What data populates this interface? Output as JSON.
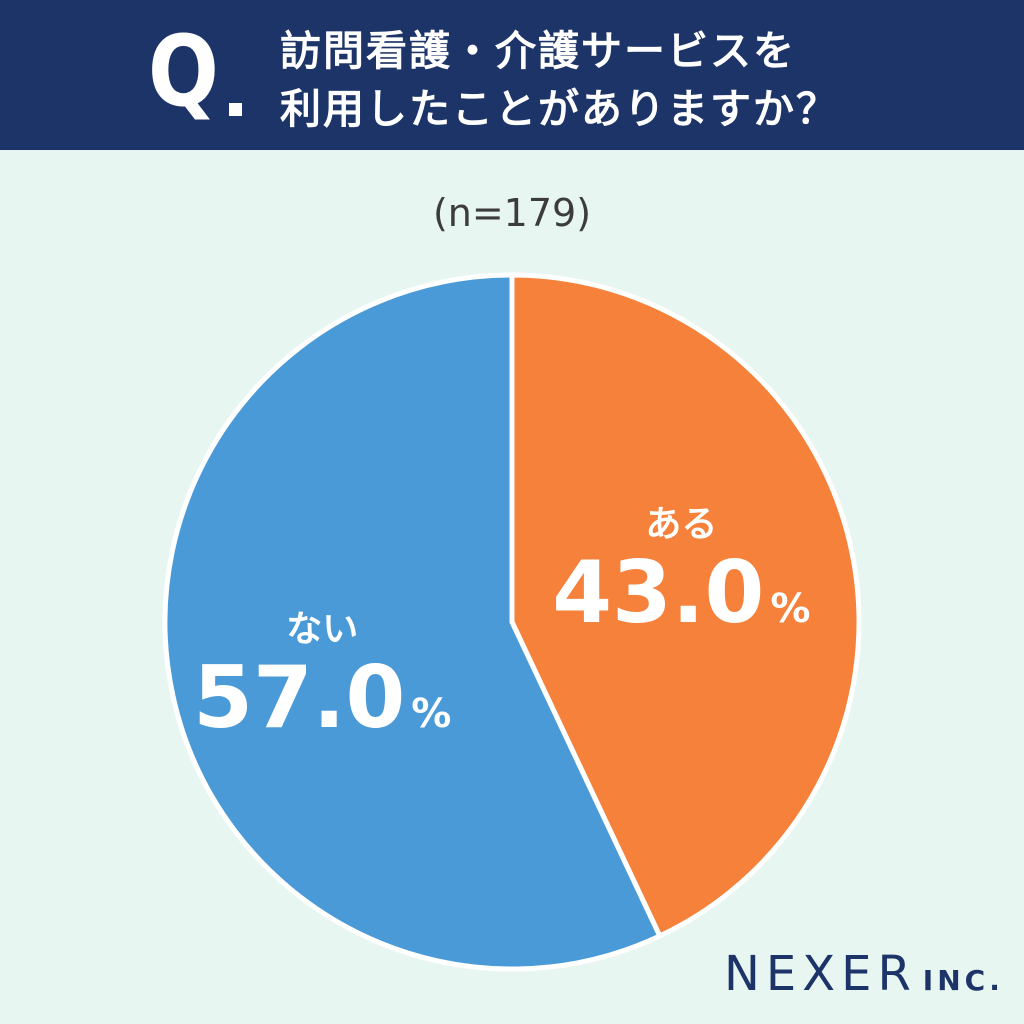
{
  "header": {
    "q_mark": "Q",
    "question_line1": "訪問看護・介護サービスを",
    "question_line2": "利用したことがありますか？"
  },
  "sample_size": "(n=179)",
  "chart_data": {
    "type": "pie",
    "title": "訪問看護・介護サービスを利用したことがありますか？",
    "n": 179,
    "unit": "%",
    "slices": [
      {
        "label": "ある",
        "value": 43.0,
        "display": "43.0",
        "color": "#f5813a"
      },
      {
        "label": "ない",
        "value": 57.0,
        "display": "57.0",
        "color": "#4a9ad8"
      }
    ],
    "start": "12 o'clock",
    "direction": "clockwise"
  },
  "logo": {
    "name": "NEXER",
    "suffix": "INC."
  },
  "colors": {
    "header_bg": "#1d3468",
    "page_bg": "#e8f6f2",
    "separator": "#ffffff"
  }
}
